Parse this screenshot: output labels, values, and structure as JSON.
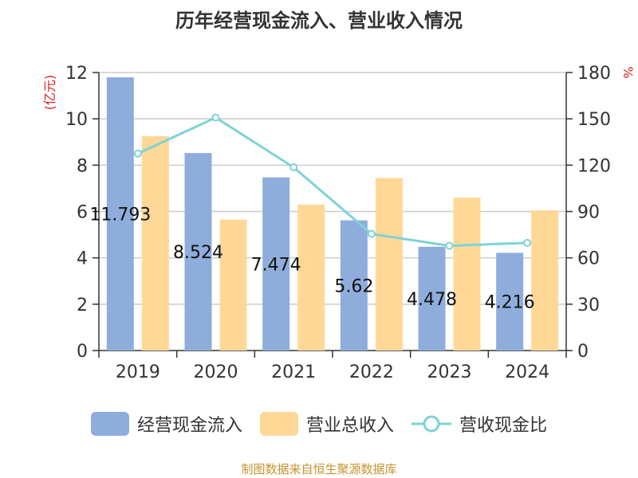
{
  "chart_data": {
    "type": "bar",
    "title": "历年经营现金流入、营业收入情况",
    "categories": [
      "2019",
      "2020",
      "2021",
      "2022",
      "2023",
      "2024"
    ],
    "series": [
      {
        "name": "经营现金流入",
        "type": "bar",
        "axis": "left",
        "color": "#8eaddb",
        "values": [
          11.793,
          8.524,
          7.474,
          5.62,
          4.478,
          4.216
        ],
        "labels": [
          "11.793",
          "8.524",
          "7.474",
          "5.62",
          "4.478",
          "4.216"
        ]
      },
      {
        "name": "营业总收入",
        "type": "bar",
        "axis": "left",
        "color": "#ffd898",
        "values": [
          9.25,
          5.65,
          6.3,
          7.45,
          6.6,
          6.05
        ]
      },
      {
        "name": "营收现金比",
        "type": "line",
        "axis": "right",
        "color": "#7ed3d6",
        "values": [
          127.5,
          150.8,
          118.6,
          75.5,
          67.8,
          69.7
        ]
      }
    ],
    "y_left": {
      "label": "(亿元)",
      "min": 0,
      "max": 12,
      "ticks": [
        0,
        2,
        4,
        6,
        8,
        10,
        12
      ]
    },
    "y_right": {
      "label": "%",
      "min": 0,
      "max": 180,
      "ticks": [
        0,
        30,
        60,
        90,
        120,
        150,
        180
      ]
    },
    "grid": true,
    "legend_position": "bottom"
  },
  "footer": {
    "source": "制图数据来自恒生聚源数据库"
  }
}
